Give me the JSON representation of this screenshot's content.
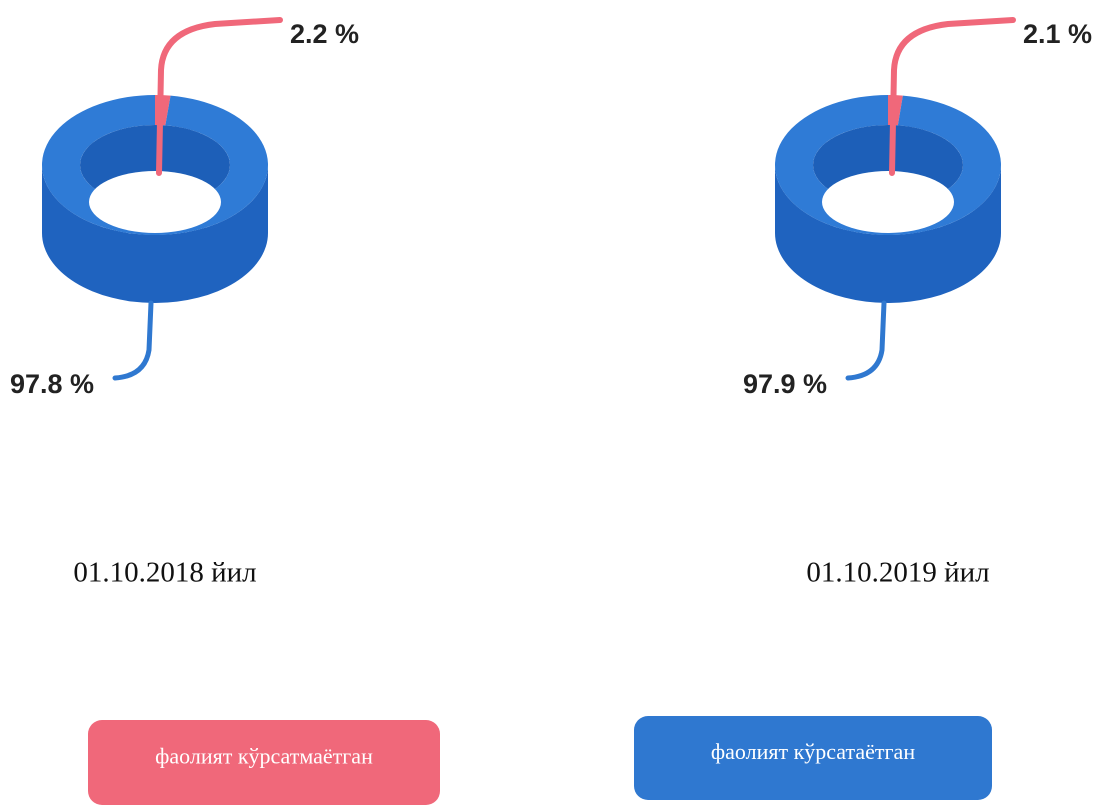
{
  "chart_data": [
    {
      "type": "pie",
      "title": "01.10.2018 йил",
      "categories": [
        "фаолият кўрсатмаётган",
        "фаолият кўрсатаётган"
      ],
      "values": [
        2.2,
        97.8
      ],
      "value_labels": [
        "2.2 %",
        "97.8 %"
      ],
      "colors": [
        "#f0687a",
        "#2f78d0"
      ]
    },
    {
      "type": "pie",
      "title": "01.10.2019 йил",
      "categories": [
        "фаолият кўрсатмаётган",
        "фаолият кўрсатаётган"
      ],
      "values": [
        2.1,
        97.9
      ],
      "value_labels": [
        "2.1 %",
        "97.9 %"
      ],
      "colors": [
        "#f0687a",
        "#2f78d0"
      ]
    }
  ]
}
